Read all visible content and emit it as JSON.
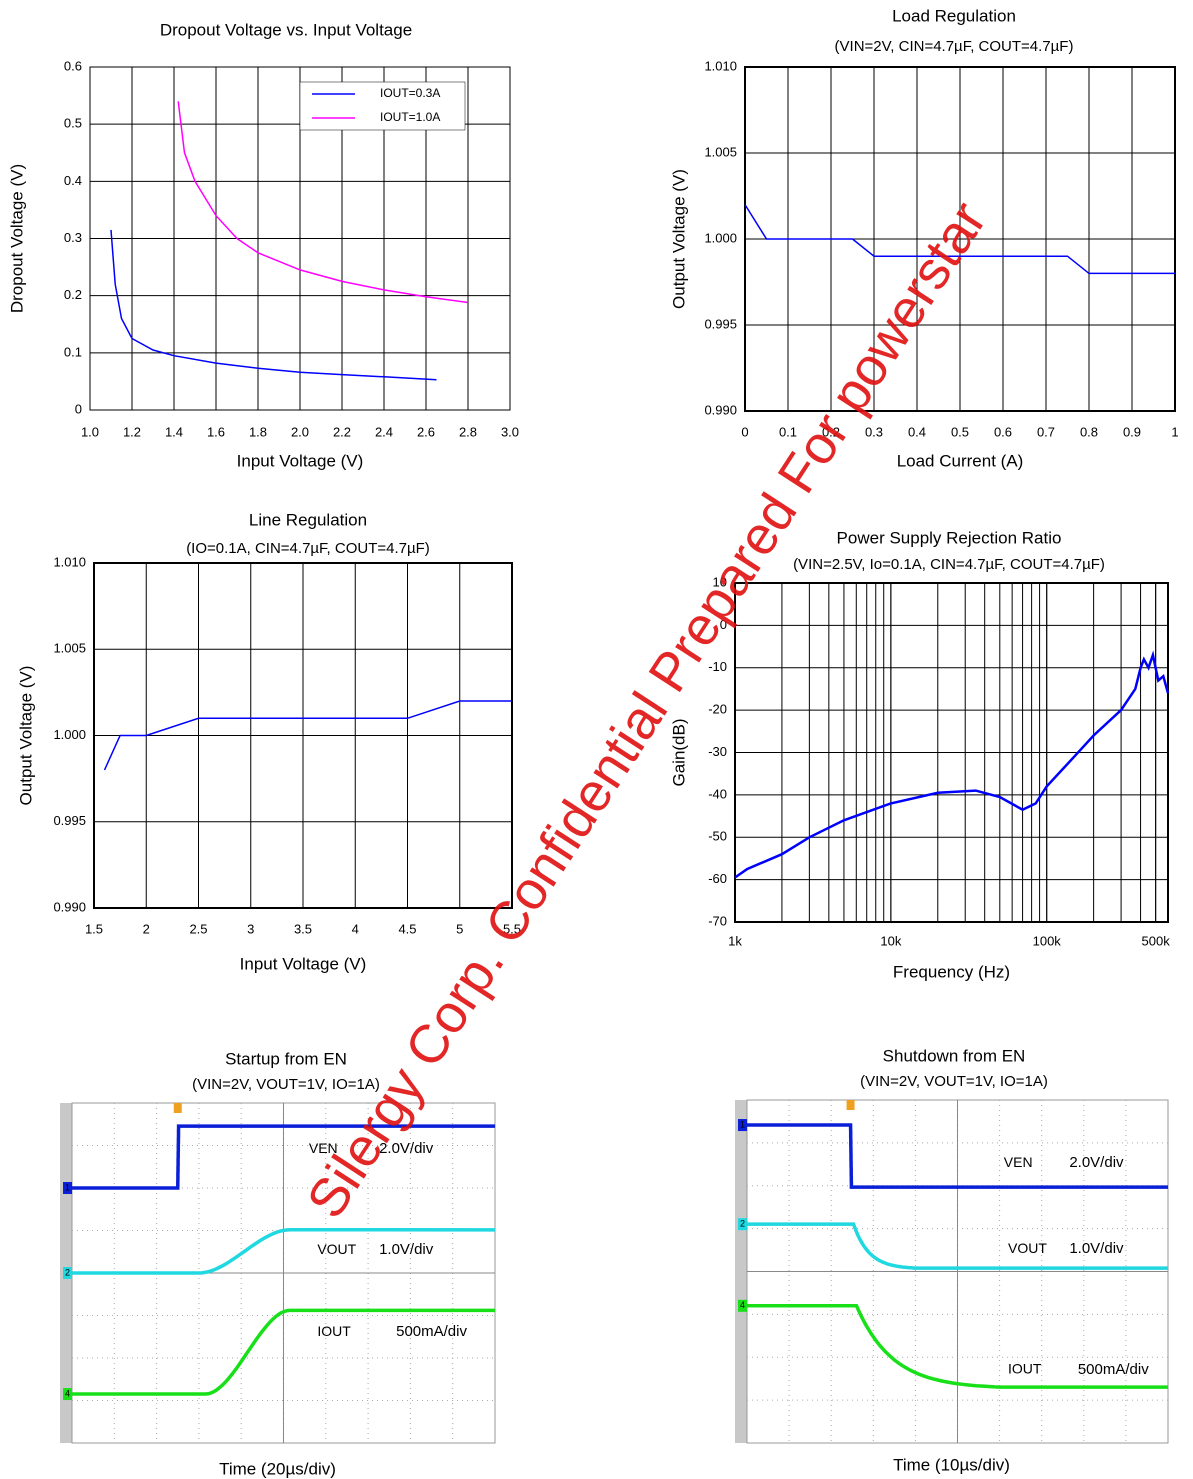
{
  "chart_data": [
    {
      "type": "line",
      "title": "Dropout Voltage vs. Input Voltage",
      "x_label": "Input Voltage (V)",
      "y_label": "Dropout Voltage (V)",
      "xlim": [
        1.0,
        3.0
      ],
      "xticks": [
        {
          "value": 1.0,
          "label": "1.0"
        },
        1.2,
        1.4,
        1.6,
        1.8,
        {
          "value": 2.0,
          "label": "2.0"
        },
        2.2,
        2.4,
        2.6,
        2.8,
        {
          "value": 3.0,
          "label": "3.0"
        }
      ],
      "ylim": [
        0,
        0.6
      ],
      "yticks": [
        0,
        0.1,
        0.2,
        0.3,
        0.4,
        0.5,
        0.6
      ],
      "grid": true,
      "legend": "upper right",
      "series": [
        {
          "name": "IOUT=0.3A",
          "color": "#0000ff",
          "x": [
            1.1,
            1.12,
            1.15,
            1.2,
            1.3,
            1.4,
            1.6,
            1.8,
            2.0,
            2.2,
            2.4,
            2.65
          ],
          "values": [
            0.315,
            0.22,
            0.16,
            0.125,
            0.105,
            0.095,
            0.082,
            0.073,
            0.066,
            0.062,
            0.058,
            0.053
          ]
        },
        {
          "name": "IOUT=1.0A",
          "color": "#ff00ff",
          "x": [
            1.42,
            1.45,
            1.5,
            1.6,
            1.7,
            1.8,
            2.0,
            2.2,
            2.4,
            2.6,
            2.8
          ],
          "values": [
            0.54,
            0.45,
            0.4,
            0.34,
            0.3,
            0.275,
            0.245,
            0.225,
            0.21,
            0.198,
            0.188
          ]
        }
      ]
    },
    {
      "type": "line",
      "title": "Load Regulation",
      "subtitle": "(VIN=2V, CIN=4.7µF, COUT=4.7µF)",
      "x_label": "Load Current (A)",
      "y_label": "Output Voltage (V)",
      "xlim": [
        0,
        1
      ],
      "xticks": [
        0,
        0.1,
        0.2,
        0.3,
        0.4,
        0.5,
        0.6,
        0.7,
        0.8,
        0.9,
        1
      ],
      "ylim": [
        0.99,
        1.01
      ],
      "yticks": [
        {
          "value": 0.99,
          "label": "0.990"
        },
        {
          "value": 0.995,
          "label": "0.995"
        },
        {
          "value": 1.0,
          "label": "1.000"
        },
        {
          "value": 1.005,
          "label": "1.005"
        },
        {
          "value": 1.01,
          "label": "1.010"
        }
      ],
      "grid": true,
      "series": [
        {
          "color": "#0000ff",
          "x": [
            0,
            0.05,
            0.25,
            0.3,
            0.75,
            0.8,
            1
          ],
          "values": [
            1.002,
            1.0,
            1.0,
            0.999,
            0.999,
            0.998,
            0.998
          ]
        }
      ]
    },
    {
      "type": "line",
      "title": "Line Regulation",
      "subtitle": "(IO=0.1A, CIN=4.7µF, COUT=4.7µF)",
      "x_label": "Input Voltage (V)",
      "y_label": "Output Voltage (V)",
      "xlim": [
        1.5,
        5.5
      ],
      "xticks": [
        1.5,
        2,
        2.5,
        3,
        3.5,
        4,
        4.5,
        5,
        5.5
      ],
      "ylim": [
        0.99,
        1.01
      ],
      "yticks": [
        {
          "value": 0.99,
          "label": "0.990"
        },
        {
          "value": 0.995,
          "label": "0.995"
        },
        {
          "value": 1.0,
          "label": "1.000"
        },
        {
          "value": 1.005,
          "label": "1.005"
        },
        {
          "value": 1.01,
          "label": "1.010"
        }
      ],
      "grid": true,
      "series": [
        {
          "color": "#0000ff",
          "x": [
            1.6,
            1.75,
            2,
            2.5,
            4.5,
            5,
            5.5
          ],
          "values": [
            0.998,
            1.0,
            1.0,
            1.001,
            1.001,
            1.002,
            1.002
          ]
        }
      ]
    },
    {
      "type": "line",
      "title": "Power Supply Rejection Ratio",
      "subtitle": "(VIN=2.5V, Io=0.1A, CIN=4.7µF, COUT=4.7µF)",
      "x_label": "Frequency (Hz)",
      "y_label": "Gain(dB)",
      "log_x": true,
      "xlim": [
        1000,
        600000
      ],
      "xticks": [
        {
          "value": 1000,
          "label": "1k"
        },
        {
          "value": 10000,
          "label": "10k"
        },
        {
          "value": 100000,
          "label": "100k"
        },
        {
          "value": 500000,
          "label": "500k"
        }
      ],
      "ylim": [
        -70,
        10
      ],
      "yticks": [
        -70,
        -60,
        -50,
        -40,
        -30,
        -20,
        -10,
        0,
        10
      ],
      "grid": true,
      "series": [
        {
          "color": "#0000ff",
          "x": [
            1000,
            1200,
            2000,
            3000,
            5000,
            10000,
            20000,
            35000,
            50000,
            70000,
            85000,
            100000,
            150000,
            200000,
            300000,
            370000,
            400000,
            420000,
            450000,
            480000,
            520000,
            560000,
            600000
          ],
          "values": [
            -59.5,
            -57.5,
            -54,
            -50,
            -46,
            -42,
            -39.5,
            -39,
            -40.5,
            -43.5,
            -42,
            -38,
            -31,
            -26,
            -20,
            -15,
            -10,
            -8,
            -10,
            -7,
            -13,
            -12,
            -16
          ]
        }
      ]
    },
    {
      "type": "scope",
      "title": "Startup from EN",
      "subtitle": "(VIN=2V, VOUT=1V, IO=1A)",
      "x_label": "Time (20µs/div)",
      "channels": [
        {
          "marker": "1",
          "name": "VEN",
          "scale": "2.0V/div",
          "color": "#0a1fd8"
        },
        {
          "marker": "2",
          "name": "VOUT",
          "scale": "1.0V/div",
          "color": "#1fd8e0"
        },
        {
          "marker": "4",
          "name": "IOUT",
          "scale": "500mA/div",
          "color": "#18e018"
        }
      ]
    },
    {
      "type": "scope",
      "title": "Shutdown from EN",
      "subtitle": "(VIN=2V, VOUT=1V, IO=1A)",
      "x_label": "Time (10µs/div)",
      "channels": [
        {
          "marker": "1",
          "name": "VEN",
          "scale": "2.0V/div",
          "color": "#0a1fd8"
        },
        {
          "marker": "2",
          "name": "VOUT",
          "scale": "1.0V/div",
          "color": "#1fd8e0"
        },
        {
          "marker": "4",
          "name": "IOUT",
          "scale": "500mA/div",
          "color": "#18e018"
        }
      ]
    }
  ],
  "watermark": "Silergy Corp. Confidential Prepared For powerstar"
}
